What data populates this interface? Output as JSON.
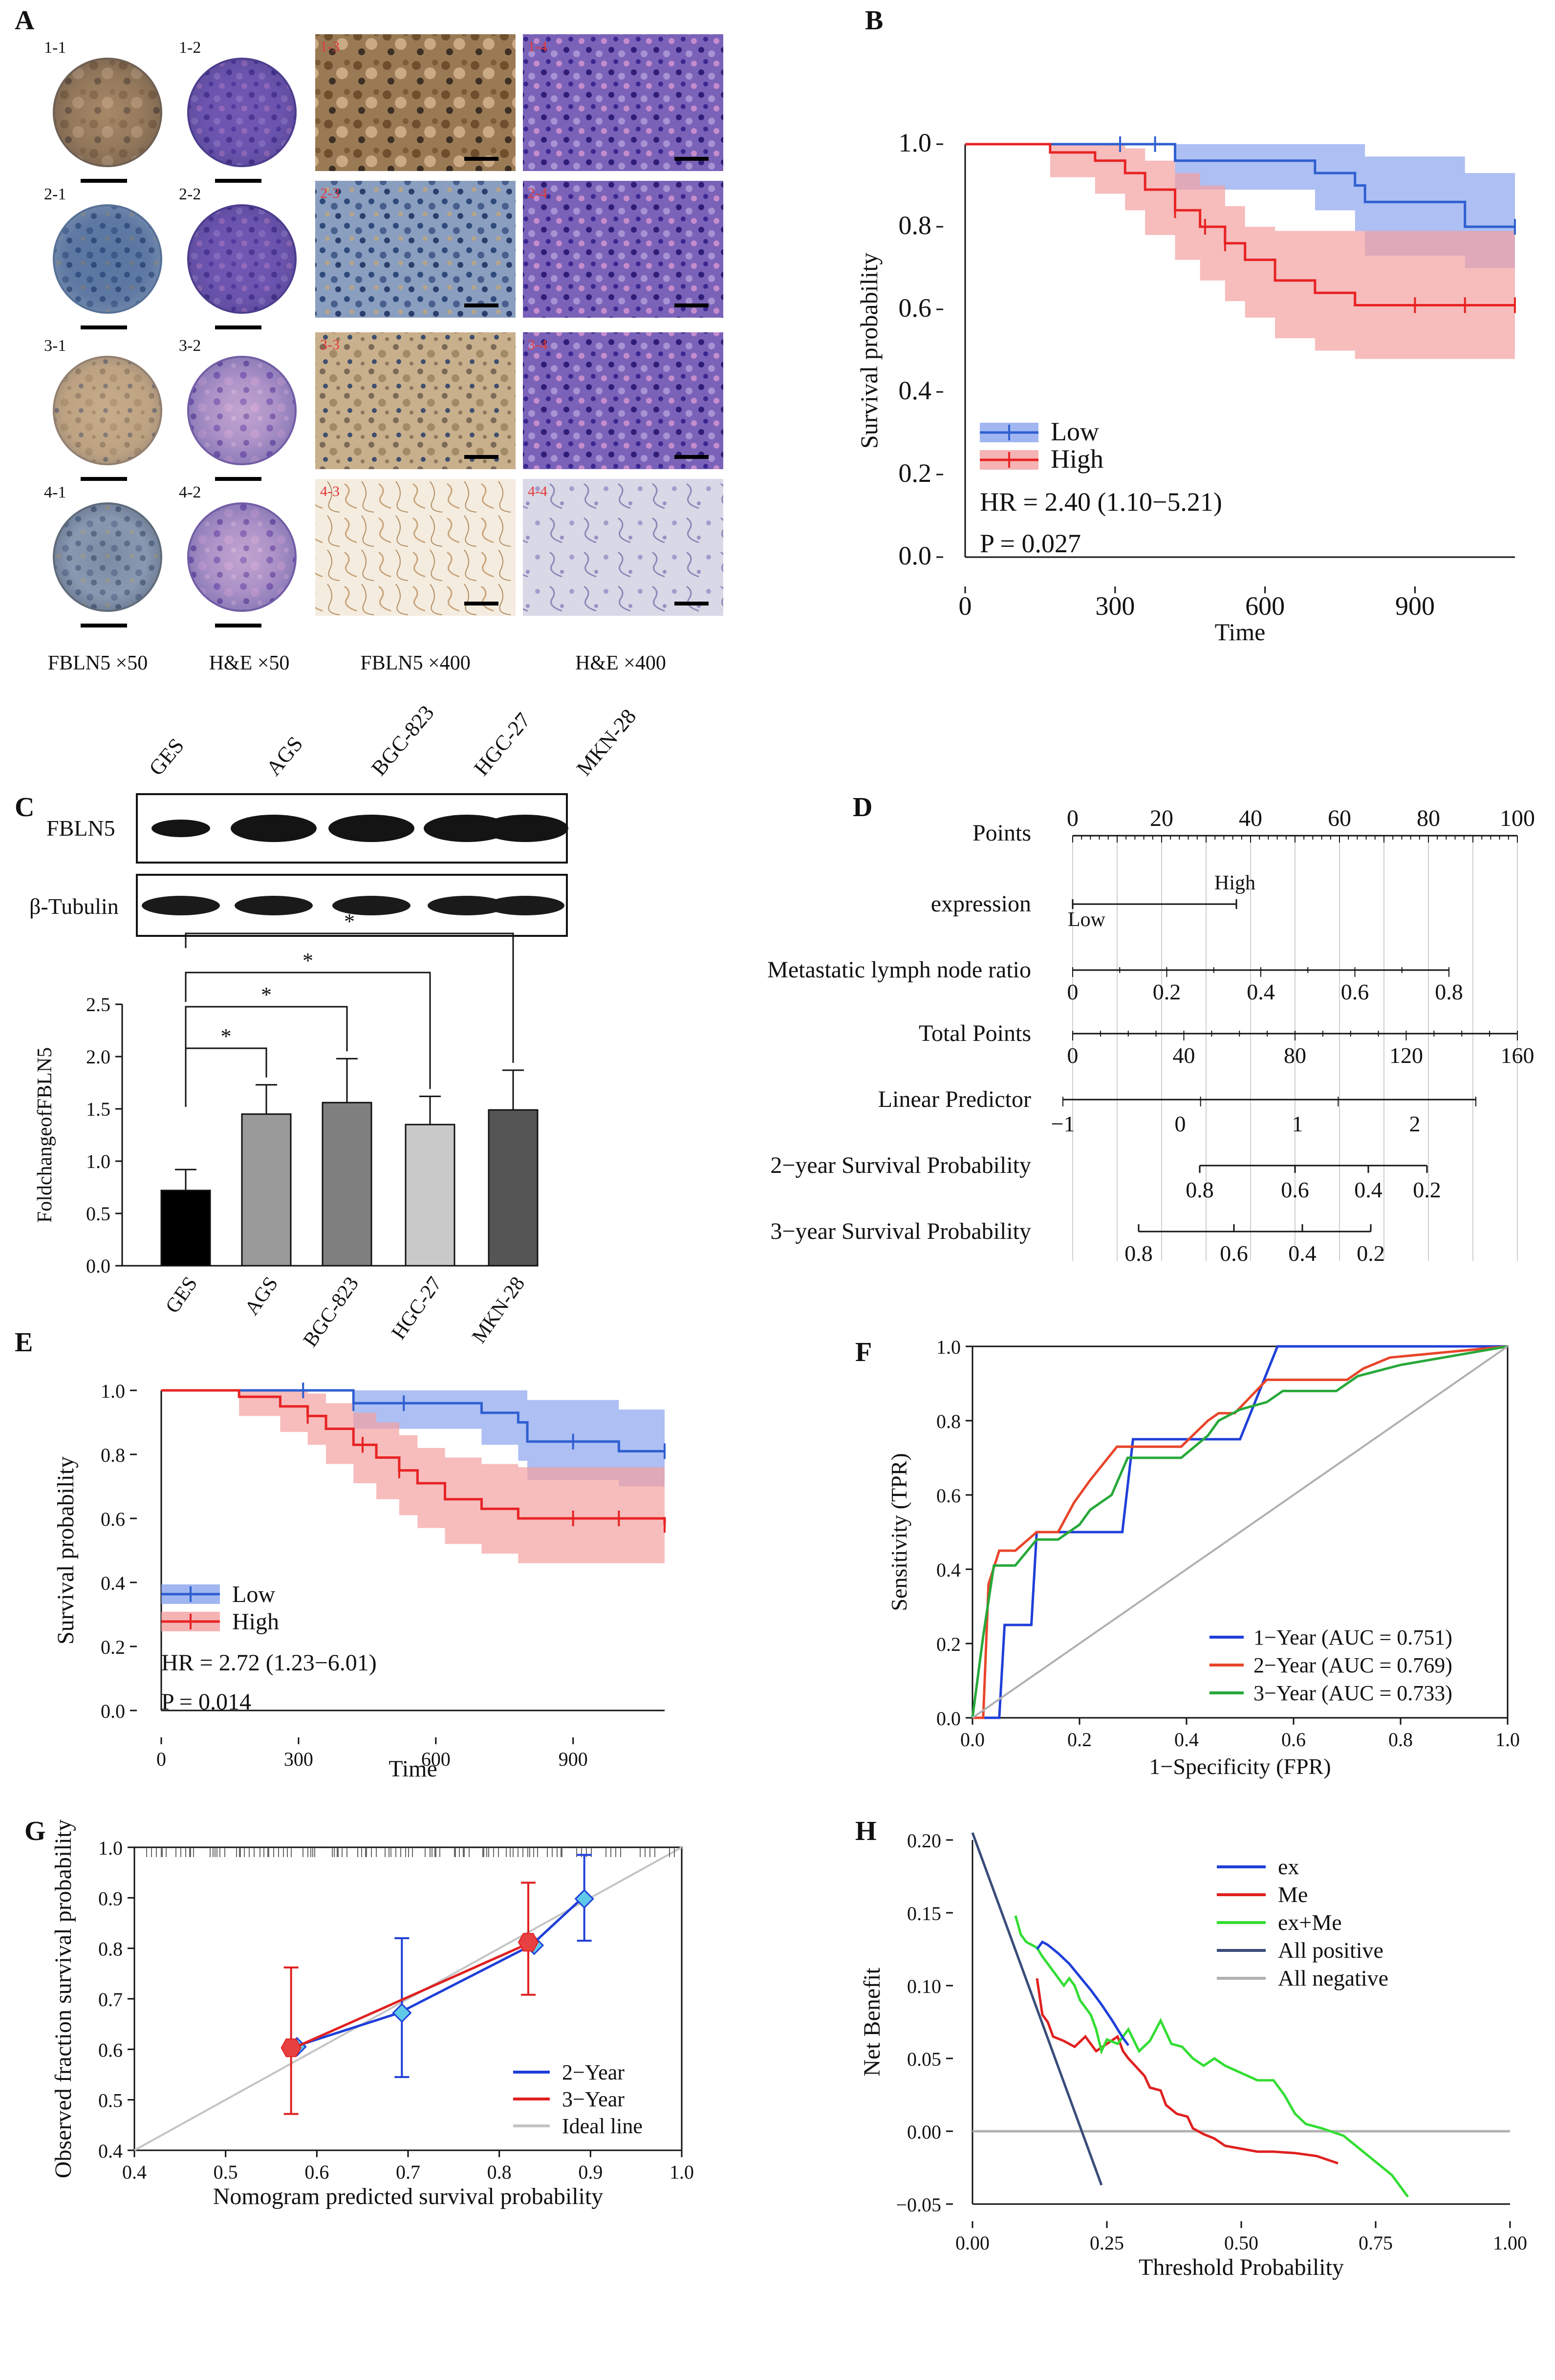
{
  "panels": {
    "A": {
      "letter": "A",
      "tiles": [
        [
          "1-1",
          "1-2",
          "1-3",
          "1-4"
        ],
        [
          "2-1",
          "2-2",
          "2-3",
          "2-4"
        ],
        [
          "3-1",
          "3-2",
          "3-3",
          "3-4"
        ],
        [
          "4-1",
          "4-2",
          "4-3",
          "4-4"
        ]
      ],
      "captions": [
        "FBLN5 ×50",
        "H&E  ×50",
        "FBLN5 ×400",
        "H&E  ×400"
      ]
    },
    "B": {
      "letter": "B"
    },
    "C": {
      "letter": "C",
      "blot_labels": [
        "FBLN5",
        "β-Tubulin"
      ],
      "star": "*"
    },
    "D": {
      "letter": "D",
      "rows": [
        "Points",
        "expression",
        "Metastatic lymph node ratio",
        "Total Points",
        "Linear Predictor",
        "2−year Survival Probability",
        "3−year Survival Probability"
      ],
      "points_ticks": [
        "0",
        "20",
        "40",
        "60",
        "80",
        "100"
      ],
      "expr_low": "Low",
      "expr_high": "High",
      "ratio_ticks": [
        "0",
        "0.2",
        "0.4",
        "0.6",
        "0.8"
      ],
      "total_ticks": [
        "0",
        "40",
        "80",
        "120",
        "160"
      ],
      "lp_ticks": [
        "−1",
        "0",
        "1",
        "2"
      ],
      "surv2_ticks": [
        "0.8",
        "0.6",
        "0.4",
        "0.2"
      ],
      "surv3_ticks": [
        "0.8",
        "0.6",
        "0.4",
        "0.2"
      ]
    },
    "E": {
      "letter": "E"
    },
    "F": {
      "letter": "F"
    },
    "G": {
      "letter": "G"
    },
    "H": {
      "letter": "H"
    }
  },
  "chart_data": [
    {
      "id": "B",
      "type": "line",
      "title": "",
      "xlabel": "Time",
      "ylabel": "Survival probability",
      "xlim": [
        0,
        1100
      ],
      "ylim": [
        0,
        1.0
      ],
      "xticks": [
        "0",
        "300",
        "600",
        "900"
      ],
      "yticks": [
        "0.0",
        "0.2",
        "0.4",
        "0.6",
        "0.8",
        "1.0"
      ],
      "series": [
        {
          "name": "Low",
          "color": "#2f5fd0",
          "band": "#8aa4ee",
          "x": [
            0,
            420,
            700,
            780,
            800,
            1000,
            1100
          ],
          "y": [
            1.0,
            0.96,
            0.93,
            0.9,
            0.86,
            0.8,
            0.8
          ],
          "lo": [
            1.0,
            0.89,
            0.84,
            0.79,
            0.73,
            0.7,
            0.7
          ],
          "hi": [
            1.0,
            1.0,
            1.0,
            1.0,
            0.97,
            0.93,
            0.93
          ]
        },
        {
          "name": "High",
          "color": "#e82323",
          "band": "#f3a0a0",
          "x": [
            0,
            170,
            260,
            320,
            360,
            420,
            470,
            520,
            560,
            620,
            700,
            780,
            1100
          ],
          "y": [
            1.0,
            0.98,
            0.96,
            0.93,
            0.89,
            0.84,
            0.8,
            0.76,
            0.72,
            0.67,
            0.64,
            0.61,
            0.61
          ],
          "lo": [
            1.0,
            0.92,
            0.88,
            0.84,
            0.78,
            0.72,
            0.67,
            0.62,
            0.58,
            0.53,
            0.5,
            0.48,
            0.48
          ],
          "hi": [
            1.0,
            1.0,
            1.0,
            0.99,
            0.96,
            0.93,
            0.9,
            0.85,
            0.8,
            0.79,
            0.79,
            0.79,
            0.79
          ]
        }
      ],
      "censor_low": [
        310,
        380,
        1100
      ],
      "censor_high": [
        420,
        480,
        520,
        900,
        1000,
        1100
      ],
      "legend": [
        "Low",
        "High"
      ],
      "annotations": [
        "HR = 2.40 (1.10−5.21)",
        "P = 0.027"
      ]
    },
    {
      "id": "C",
      "type": "bar",
      "title": "",
      "blot_lanes": [
        "GES",
        "AGS",
        "BGC-823",
        "HGC-27",
        "MKN-28"
      ],
      "categories": [
        "GES",
        "AGS",
        "BGC-823",
        "HGC-27",
        "MKN-28"
      ],
      "values": [
        0.72,
        1.45,
        1.56,
        1.35,
        1.49
      ],
      "errors": [
        0.2,
        0.28,
        0.42,
        0.27,
        0.38
      ],
      "colors": [
        "#000000",
        "#9a9a9a",
        "#7f7f7f",
        "#c9c9c9",
        "#555555"
      ],
      "ylabel": "FoldchangeofFBLN5",
      "ylim": [
        0,
        2.5
      ],
      "yticks": [
        "0.0",
        "0.5",
        "1.0",
        "1.5",
        "2.0",
        "2.5"
      ],
      "significance": [
        {
          "from": "GES",
          "to": "AGS",
          "label": "*"
        },
        {
          "from": "GES",
          "to": "BGC-823",
          "label": "*"
        },
        {
          "from": "GES",
          "to": "HGC-27",
          "label": "*"
        },
        {
          "from": "GES",
          "to": "MKN-28",
          "label": "*"
        }
      ]
    },
    {
      "id": "E",
      "type": "line",
      "title": "",
      "xlabel": "Time",
      "ylabel": "Survival probability",
      "xlim": [
        0,
        1100
      ],
      "ylim": [
        0,
        1.0
      ],
      "xticks": [
        "0",
        "300",
        "600",
        "900"
      ],
      "yticks": [
        "0.0",
        "0.2",
        "0.4",
        "0.6",
        "0.8",
        "1.0"
      ],
      "series": [
        {
          "name": "Low",
          "color": "#2f5fd0",
          "band": "#8aa4ee",
          "x": [
            0,
            420,
            700,
            780,
            800,
            1000,
            1100
          ],
          "y": [
            1.0,
            0.96,
            0.93,
            0.9,
            0.84,
            0.81,
            0.81
          ],
          "lo": [
            1.0,
            0.88,
            0.83,
            0.78,
            0.72,
            0.7,
            0.7
          ],
          "hi": [
            1.0,
            1.0,
            1.0,
            1.0,
            0.97,
            0.94,
            0.94
          ]
        },
        {
          "name": "High",
          "color": "#e82323",
          "band": "#f3a0a0",
          "x": [
            0,
            170,
            260,
            320,
            360,
            420,
            470,
            520,
            560,
            620,
            700,
            780,
            1100
          ],
          "y": [
            1.0,
            0.98,
            0.95,
            0.92,
            0.88,
            0.83,
            0.79,
            0.75,
            0.71,
            0.66,
            0.63,
            0.6,
            0.58
          ],
          "lo": [
            1.0,
            0.92,
            0.87,
            0.83,
            0.77,
            0.71,
            0.66,
            0.61,
            0.57,
            0.52,
            0.49,
            0.46,
            0.46
          ],
          "hi": [
            1.0,
            1.0,
            1.0,
            0.99,
            0.96,
            0.93,
            0.9,
            0.86,
            0.82,
            0.79,
            0.77,
            0.76,
            0.76
          ]
        }
      ],
      "censor_low": [
        310,
        420,
        530,
        900,
        1100
      ],
      "censor_high": [
        320,
        440,
        520,
        900,
        1000,
        1100
      ],
      "legend": [
        "Low",
        "High"
      ],
      "annotations": [
        "HR = 2.72 (1.23−6.01)",
        "P = 0.014"
      ]
    },
    {
      "id": "F",
      "type": "line",
      "title": "",
      "xlabel": "1−Specificity (FPR)",
      "ylabel": "Sensitivity (TPR)",
      "xlim": [
        0,
        1.0
      ],
      "ylim": [
        0,
        1.0
      ],
      "xticks": [
        "0.0",
        "0.2",
        "0.4",
        "0.6",
        "0.8",
        "1.0"
      ],
      "yticks": [
        "0.0",
        "0.2",
        "0.4",
        "0.6",
        "0.8",
        "1.0"
      ],
      "series": [
        {
          "name": "1−Year (AUC = 0.751)",
          "color": "#1f3fd8",
          "x": [
            0,
            0.05,
            0.06,
            0.11,
            0.12,
            0.17,
            0.22,
            0.28,
            0.3,
            0.43,
            0.47,
            0.5,
            0.57,
            0.6,
            1.0
          ],
          "y": [
            0,
            0,
            0.25,
            0.25,
            0.5,
            0.5,
            0.5,
            0.5,
            0.75,
            0.75,
            0.75,
            0.75,
            1.0,
            1.0,
            1.0
          ]
        },
        {
          "name": "2−Year (AUC = 0.769)",
          "color": "#e8452a",
          "x": [
            0,
            0.02,
            0.03,
            0.05,
            0.08,
            0.12,
            0.16,
            0.19,
            0.22,
            0.27,
            0.39,
            0.44,
            0.46,
            0.49,
            0.55,
            0.57,
            0.7,
            0.73,
            0.78,
            1.0
          ],
          "y": [
            0,
            0,
            0.36,
            0.45,
            0.45,
            0.5,
            0.5,
            0.58,
            0.64,
            0.73,
            0.73,
            0.8,
            0.82,
            0.82,
            0.91,
            0.91,
            0.91,
            0.94,
            0.97,
            1.0
          ]
        },
        {
          "name": "3−Year (AUC = 0.733)",
          "color": "#27a83a",
          "x": [
            0,
            0.02,
            0.04,
            0.08,
            0.12,
            0.16,
            0.2,
            0.22,
            0.26,
            0.29,
            0.33,
            0.39,
            0.44,
            0.46,
            0.5,
            0.55,
            0.58,
            0.68,
            0.72,
            0.8,
            1.0
          ],
          "y": [
            0,
            0.22,
            0.41,
            0.41,
            0.48,
            0.48,
            0.52,
            0.56,
            0.6,
            0.7,
            0.7,
            0.7,
            0.76,
            0.8,
            0.83,
            0.85,
            0.88,
            0.88,
            0.92,
            0.95,
            1.0
          ]
        },
        {
          "name": "reference",
          "color": "#b0b0b0",
          "x": [
            0,
            1
          ],
          "y": [
            0,
            1
          ]
        }
      ],
      "legend": [
        "1−Year (AUC = 0.751)",
        "2−Year (AUC = 0.769)",
        "3−Year (AUC = 0.733)"
      ]
    },
    {
      "id": "G",
      "type": "scatter",
      "title": "",
      "xlabel": "Nomogram predicted survival probability",
      "ylabel": "Observed fraction survival probability",
      "xlim": [
        0.4,
        1.0
      ],
      "ylim": [
        0.4,
        1.0
      ],
      "xticks": [
        "0.4",
        "0.5",
        "0.6",
        "0.7",
        "0.8",
        "0.9",
        "1.0"
      ],
      "yticks": [
        "0.4",
        "0.5",
        "0.6",
        "0.7",
        "0.8",
        "0.9",
        "1.0"
      ],
      "series": [
        {
          "name": "2−Year",
          "color": "#1f3fd8",
          "x": [
            0.575,
            0.69,
            0.835,
            0.89
          ],
          "y": [
            0.605,
            0.672,
            0.806,
            0.898
          ],
          "lo": [
            0.605,
            0.545,
            0.806,
            0.815
          ],
          "hi": [
            0.605,
            0.82,
            0.806,
            0.985
          ]
        },
        {
          "name": "3−Year",
          "color": "#e02020",
          "x": [
            0.575,
            0.835
          ],
          "y": [
            0.603,
            0.812
          ],
          "lo": [
            0.472,
            0.708
          ],
          "hi": [
            0.762,
            0.93
          ]
        },
        {
          "name": "Ideal line",
          "color": "#c4c4c4",
          "x": [
            0.4,
            1.0
          ],
          "y": [
            0.4,
            1.0
          ]
        }
      ],
      "legend": [
        "2−Year",
        "3−Year",
        "Ideal line"
      ]
    },
    {
      "id": "H",
      "type": "line",
      "title": "",
      "xlabel": "Threshold Probability",
      "ylabel": "Net Benefit",
      "xlim": [
        0,
        1.0
      ],
      "ylim": [
        -0.05,
        0.2
      ],
      "xticks": [
        "0.00",
        "0.25",
        "0.50",
        "0.75",
        "1.00"
      ],
      "yticks": [
        "−0.05",
        "0.00",
        "0.05",
        "0.10",
        "0.15",
        "0.20"
      ],
      "series": [
        {
          "name": "ex",
          "color": "#1f3fd8",
          "x": [
            0.12,
            0.13,
            0.14,
            0.16,
            0.18,
            0.2,
            0.22,
            0.24,
            0.26,
            0.27,
            0.28,
            0.29
          ],
          "y": [
            0.125,
            0.13,
            0.128,
            0.122,
            0.115,
            0.106,
            0.097,
            0.087,
            0.076,
            0.07,
            0.064,
            0.059
          ]
        },
        {
          "name": "Me",
          "color": "#e02020",
          "x": [
            0.12,
            0.13,
            0.14,
            0.15,
            0.17,
            0.19,
            0.21,
            0.23,
            0.25,
            0.27,
            0.28,
            0.29,
            0.31,
            0.32,
            0.33,
            0.35,
            0.36,
            0.38,
            0.4,
            0.41,
            0.43,
            0.45,
            0.47,
            0.5,
            0.53,
            0.56,
            0.6,
            0.64,
            0.68
          ],
          "y": [
            0.105,
            0.08,
            0.075,
            0.065,
            0.062,
            0.058,
            0.065,
            0.055,
            0.06,
            0.065,
            0.055,
            0.05,
            0.042,
            0.038,
            0.03,
            0.028,
            0.018,
            0.012,
            0.01,
            0.002,
            -0.002,
            -0.005,
            -0.01,
            -0.012,
            -0.014,
            -0.014,
            -0.015,
            -0.017,
            -0.022
          ]
        },
        {
          "name": "ex+Me",
          "color": "#33dd33",
          "x": [
            0.08,
            0.09,
            0.1,
            0.12,
            0.13,
            0.15,
            0.17,
            0.18,
            0.19,
            0.2,
            0.22,
            0.23,
            0.24,
            0.25,
            0.27,
            0.29,
            0.31,
            0.33,
            0.35,
            0.37,
            0.39,
            0.41,
            0.43,
            0.45,
            0.47,
            0.5,
            0.53,
            0.56,
            0.58,
            0.6,
            0.62,
            0.65,
            0.69,
            0.73,
            0.78,
            0.81
          ],
          "y": [
            0.148,
            0.135,
            0.13,
            0.126,
            0.12,
            0.11,
            0.1,
            0.105,
            0.1,
            0.09,
            0.08,
            0.07,
            0.055,
            0.063,
            0.06,
            0.07,
            0.055,
            0.062,
            0.076,
            0.06,
            0.058,
            0.05,
            0.045,
            0.05,
            0.045,
            0.04,
            0.035,
            0.035,
            0.025,
            0.012,
            0.005,
            0.002,
            -0.003,
            -0.015,
            -0.03,
            -0.045
          ]
        },
        {
          "name": "All positive",
          "color": "#3a4d7a",
          "x": [
            0.0,
            0.24
          ],
          "y": [
            0.205,
            -0.037
          ]
        },
        {
          "name": "All negative",
          "color": "#b0b0b0",
          "x": [
            0.0,
            1.0
          ],
          "y": [
            0.0,
            0.0
          ]
        }
      ],
      "legend": [
        "ex",
        "Me",
        "ex+Me",
        "All positive",
        "All negative"
      ]
    }
  ]
}
